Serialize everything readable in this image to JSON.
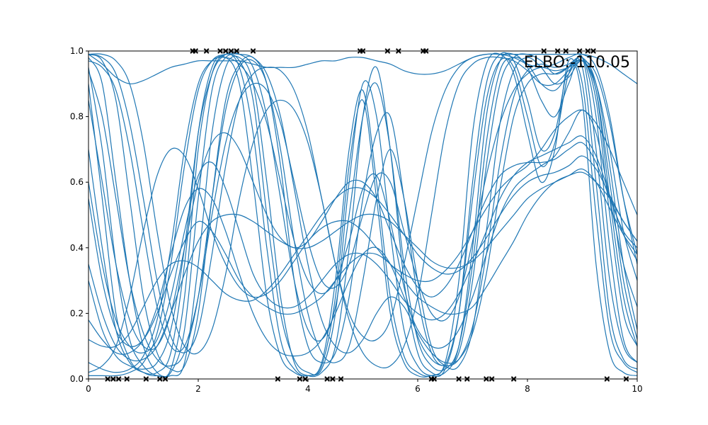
{
  "chart_data": {
    "type": "line",
    "title": "",
    "xlabel": "",
    "ylabel": "",
    "xlim": [
      0,
      10
    ],
    "ylim": [
      0,
      1
    ],
    "x_ticks": [
      "0",
      "2",
      "4",
      "6",
      "8",
      "10"
    ],
    "y_ticks": [
      "0.0",
      "0.2",
      "0.4",
      "0.6",
      "0.8",
      "1.0"
    ],
    "x_tick_values": [
      0,
      2,
      4,
      6,
      8,
      10
    ],
    "y_tick_values": [
      0.0,
      0.2,
      0.4,
      0.6,
      0.8,
      1.0
    ],
    "grid": false,
    "legend": "none",
    "line_color": "#1f77b4",
    "marker_color": "#000000",
    "annotation": "ELBO:-110.05",
    "x": [
      0,
      0.25,
      0.5,
      0.75,
      1.0,
      1.25,
      1.5,
      1.75,
      2.0,
      2.25,
      2.5,
      2.75,
      3.0,
      3.25,
      3.5,
      3.75,
      4.0,
      4.25,
      4.5,
      4.75,
      5.0,
      5.25,
      5.5,
      5.75,
      6.0,
      6.25,
      6.5,
      6.75,
      7.0,
      7.25,
      7.5,
      7.75,
      8.0,
      8.25,
      8.5,
      8.75,
      9.0,
      9.25,
      9.5,
      9.75,
      10.0
    ],
    "series": [
      {
        "values": [
          0.98,
          0.9,
          0.6,
          0.3,
          0.1,
          0.02,
          0.01,
          0.05,
          0.35,
          0.75,
          0.95,
          0.98,
          0.9,
          0.6,
          0.25,
          0.05,
          0.01,
          0.02,
          0.1,
          0.4,
          0.8,
          0.95,
          0.7,
          0.3,
          0.08,
          0.02,
          0.02,
          0.1,
          0.4,
          0.8,
          0.97,
          0.99,
          0.95,
          0.85,
          0.8,
          0.9,
          0.98,
          0.7,
          0.3,
          0.1,
          0.05
        ]
      },
      {
        "values": [
          0.95,
          0.7,
          0.35,
          0.12,
          0.04,
          0.01,
          0.02,
          0.15,
          0.55,
          0.88,
          0.98,
          0.97,
          0.85,
          0.5,
          0.2,
          0.06,
          0.02,
          0.03,
          0.2,
          0.6,
          0.9,
          0.8,
          0.45,
          0.15,
          0.04,
          0.01,
          0.03,
          0.2,
          0.6,
          0.9,
          0.99,
          0.97,
          0.85,
          0.7,
          0.75,
          0.95,
          0.9,
          0.5,
          0.15,
          0.05,
          0.02
        ]
      },
      {
        "values": [
          0.9,
          0.55,
          0.2,
          0.06,
          0.02,
          0.01,
          0.03,
          0.25,
          0.7,
          0.93,
          0.99,
          0.95,
          0.75,
          0.4,
          0.12,
          0.03,
          0.01,
          0.05,
          0.3,
          0.7,
          0.88,
          0.6,
          0.25,
          0.07,
          0.02,
          0.01,
          0.05,
          0.3,
          0.75,
          0.96,
          0.99,
          0.93,
          0.75,
          0.6,
          0.7,
          0.97,
          0.85,
          0.35,
          0.08,
          0.02,
          0.01
        ]
      },
      {
        "values": [
          0.99,
          0.97,
          0.85,
          0.55,
          0.25,
          0.08,
          0.03,
          0.04,
          0.2,
          0.55,
          0.85,
          0.96,
          0.98,
          0.9,
          0.65,
          0.3,
          0.1,
          0.05,
          0.08,
          0.25,
          0.55,
          0.75,
          0.8,
          0.55,
          0.25,
          0.08,
          0.04,
          0.08,
          0.3,
          0.65,
          0.9,
          0.98,
          0.99,
          0.97,
          0.93,
          0.95,
          0.98,
          0.85,
          0.5,
          0.2,
          0.1
        ]
      },
      {
        "values": [
          0.7,
          0.4,
          0.15,
          0.05,
          0.02,
          0.02,
          0.08,
          0.35,
          0.75,
          0.95,
          0.98,
          0.9,
          0.6,
          0.25,
          0.07,
          0.02,
          0.01,
          0.04,
          0.25,
          0.65,
          0.85,
          0.55,
          0.2,
          0.05,
          0.01,
          0.01,
          0.04,
          0.2,
          0.55,
          0.85,
          0.97,
          0.95,
          0.8,
          0.65,
          0.72,
          0.93,
          0.95,
          0.6,
          0.2,
          0.06,
          0.03
        ]
      },
      {
        "values": [
          0.97,
          0.95,
          0.88,
          0.7,
          0.45,
          0.22,
          0.1,
          0.1,
          0.25,
          0.5,
          0.72,
          0.85,
          0.9,
          0.88,
          0.78,
          0.6,
          0.42,
          0.3,
          0.28,
          0.35,
          0.5,
          0.62,
          0.6,
          0.45,
          0.3,
          0.2,
          0.18,
          0.25,
          0.42,
          0.62,
          0.78,
          0.88,
          0.93,
          0.95,
          0.94,
          0.95,
          0.97,
          0.9,
          0.7,
          0.45,
          0.3
        ]
      },
      {
        "values": [
          0.3,
          0.15,
          0.07,
          0.04,
          0.03,
          0.05,
          0.15,
          0.4,
          0.75,
          0.93,
          0.99,
          0.99,
          0.95,
          0.8,
          0.55,
          0.3,
          0.15,
          0.12,
          0.22,
          0.5,
          0.8,
          0.9,
          0.7,
          0.35,
          0.12,
          0.04,
          0.03,
          0.1,
          0.35,
          0.72,
          0.94,
          0.98,
          0.96,
          0.9,
          0.88,
          0.93,
          0.98,
          0.8,
          0.4,
          0.12,
          0.05
        ]
      },
      {
        "values": [
          0.85,
          0.6,
          0.35,
          0.18,
          0.1,
          0.1,
          0.2,
          0.4,
          0.6,
          0.72,
          0.75,
          0.7,
          0.6,
          0.5,
          0.43,
          0.4,
          0.42,
          0.48,
          0.55,
          0.6,
          0.6,
          0.55,
          0.45,
          0.35,
          0.28,
          0.25,
          0.28,
          0.35,
          0.45,
          0.55,
          0.62,
          0.65,
          0.66,
          0.66,
          0.67,
          0.7,
          0.72,
          0.66,
          0.55,
          0.45,
          0.4
        ]
      },
      {
        "values": [
          0.99,
          0.96,
          0.92,
          0.9,
          0.91,
          0.93,
          0.95,
          0.96,
          0.97,
          0.97,
          0.97,
          0.97,
          0.96,
          0.95,
          0.95,
          0.95,
          0.96,
          0.97,
          0.97,
          0.98,
          0.98,
          0.97,
          0.96,
          0.94,
          0.93,
          0.93,
          0.94,
          0.96,
          0.98,
          0.99,
          0.99,
          0.99,
          0.99,
          0.99,
          0.99,
          0.99,
          0.99,
          0.98,
          0.96,
          0.93,
          0.9
        ]
      },
      {
        "values": [
          0.55,
          0.3,
          0.15,
          0.1,
          0.12,
          0.2,
          0.32,
          0.42,
          0.48,
          0.45,
          0.38,
          0.3,
          0.25,
          0.22,
          0.2,
          0.2,
          0.22,
          0.25,
          0.3,
          0.35,
          0.38,
          0.38,
          0.35,
          0.3,
          0.25,
          0.22,
          0.2,
          0.2,
          0.22,
          0.28,
          0.35,
          0.42,
          0.5,
          0.56,
          0.6,
          0.62,
          0.63,
          0.6,
          0.55,
          0.48,
          0.42
        ]
      },
      {
        "values": [
          0.02,
          0.04,
          0.1,
          0.25,
          0.45,
          0.62,
          0.7,
          0.68,
          0.58,
          0.45,
          0.35,
          0.28,
          0.25,
          0.26,
          0.3,
          0.36,
          0.42,
          0.46,
          0.48,
          0.48,
          0.45,
          0.4,
          0.35,
          0.32,
          0.3,
          0.3,
          0.33,
          0.38,
          0.45,
          0.52,
          0.58,
          0.62,
          0.65,
          0.7,
          0.76,
          0.8,
          0.82,
          0.78,
          0.7,
          0.6,
          0.5
        ]
      },
      {
        "values": [
          0.99,
          0.98,
          0.93,
          0.78,
          0.55,
          0.3,
          0.13,
          0.08,
          0.15,
          0.38,
          0.65,
          0.85,
          0.93,
          0.95,
          0.94,
          0.88,
          0.75,
          0.55,
          0.35,
          0.2,
          0.13,
          0.12,
          0.18,
          0.35,
          0.55,
          0.75,
          0.88,
          0.95,
          0.98,
          0.99,
          0.99,
          0.98,
          0.96,
          0.95,
          0.96,
          0.98,
          0.99,
          0.95,
          0.8,
          0.55,
          0.35
        ]
      },
      {
        "values": [
          0.18,
          0.12,
          0.08,
          0.08,
          0.12,
          0.22,
          0.38,
          0.52,
          0.58,
          0.55,
          0.45,
          0.32,
          0.2,
          0.12,
          0.08,
          0.07,
          0.08,
          0.12,
          0.2,
          0.3,
          0.38,
          0.4,
          0.35,
          0.25,
          0.15,
          0.1,
          0.1,
          0.15,
          0.25,
          0.38,
          0.5,
          0.58,
          0.62,
          0.65,
          0.68,
          0.75,
          0.82,
          0.75,
          0.55,
          0.35,
          0.22
        ]
      },
      {
        "values": [
          0.94,
          0.8,
          0.55,
          0.3,
          0.14,
          0.06,
          0.04,
          0.08,
          0.25,
          0.55,
          0.82,
          0.95,
          0.97,
          0.9,
          0.7,
          0.42,
          0.2,
          0.08,
          0.05,
          0.1,
          0.3,
          0.55,
          0.7,
          0.55,
          0.3,
          0.1,
          0.04,
          0.04,
          0.15,
          0.45,
          0.78,
          0.94,
          0.98,
          0.95,
          0.9,
          0.92,
          0.97,
          0.88,
          0.55,
          0.25,
          0.1
        ]
      },
      {
        "values": [
          0.6,
          0.35,
          0.18,
          0.1,
          0.08,
          0.12,
          0.25,
          0.45,
          0.62,
          0.66,
          0.58,
          0.45,
          0.32,
          0.25,
          0.22,
          0.22,
          0.25,
          0.3,
          0.35,
          0.38,
          0.38,
          0.35,
          0.3,
          0.24,
          0.2,
          0.18,
          0.2,
          0.26,
          0.35,
          0.45,
          0.55,
          0.62,
          0.66,
          0.68,
          0.7,
          0.72,
          0.74,
          0.68,
          0.56,
          0.44,
          0.36
        ]
      },
      {
        "values": [
          0.05,
          0.03,
          0.02,
          0.03,
          0.07,
          0.18,
          0.4,
          0.7,
          0.9,
          0.97,
          0.98,
          0.96,
          0.9,
          0.78,
          0.6,
          0.42,
          0.3,
          0.26,
          0.3,
          0.42,
          0.58,
          0.62,
          0.48,
          0.28,
          0.13,
          0.06,
          0.04,
          0.06,
          0.16,
          0.38,
          0.66,
          0.86,
          0.94,
          0.96,
          0.95,
          0.96,
          0.98,
          0.9,
          0.65,
          0.35,
          0.15
        ]
      },
      {
        "values": [
          0.12,
          0.1,
          0.1,
          0.14,
          0.22,
          0.3,
          0.35,
          0.36,
          0.34,
          0.3,
          0.26,
          0.24,
          0.24,
          0.27,
          0.32,
          0.38,
          0.44,
          0.5,
          0.55,
          0.58,
          0.58,
          0.55,
          0.5,
          0.44,
          0.38,
          0.34,
          0.32,
          0.33,
          0.37,
          0.43,
          0.5,
          0.56,
          0.6,
          0.62,
          0.63,
          0.65,
          0.68,
          0.64,
          0.56,
          0.48,
          0.42
        ]
      },
      {
        "values": [
          0.99,
          0.99,
          0.97,
          0.9,
          0.72,
          0.45,
          0.22,
          0.1,
          0.08,
          0.15,
          0.32,
          0.55,
          0.72,
          0.82,
          0.85,
          0.82,
          0.72,
          0.55,
          0.35,
          0.18,
          0.08,
          0.04,
          0.04,
          0.1,
          0.25,
          0.5,
          0.75,
          0.9,
          0.96,
          0.98,
          0.98,
          0.97,
          0.94,
          0.9,
          0.9,
          0.94,
          0.97,
          0.93,
          0.78,
          0.55,
          0.38
        ]
      },
      {
        "values": [
          0.35,
          0.2,
          0.1,
          0.06,
          0.06,
          0.1,
          0.2,
          0.32,
          0.42,
          0.48,
          0.5,
          0.5,
          0.48,
          0.45,
          0.42,
          0.4,
          0.4,
          0.42,
          0.45,
          0.48,
          0.5,
          0.5,
          0.48,
          0.44,
          0.4,
          0.36,
          0.34,
          0.34,
          0.36,
          0.4,
          0.45,
          0.5,
          0.55,
          0.58,
          0.6,
          0.62,
          0.64,
          0.6,
          0.52,
          0.44,
          0.38
        ]
      },
      {
        "values": [
          0.01,
          0.01,
          0.01,
          0.02,
          0.05,
          0.14,
          0.35,
          0.65,
          0.88,
          0.97,
          0.99,
          0.99,
          0.98,
          0.93,
          0.8,
          0.58,
          0.35,
          0.18,
          0.1,
          0.08,
          0.12,
          0.2,
          0.25,
          0.22,
          0.14,
          0.08,
          0.05,
          0.06,
          0.14,
          0.32,
          0.58,
          0.8,
          0.9,
          0.93,
          0.93,
          0.95,
          0.97,
          0.88,
          0.6,
          0.3,
          0.12
        ]
      }
    ],
    "markers": {
      "x": [
        1.9,
        1.95,
        2.15,
        2.4,
        2.5,
        2.6,
        2.7,
        3.0,
        4.95,
        5.0,
        5.45,
        5.65,
        6.1,
        6.15,
        8.3,
        8.55,
        8.7,
        8.95,
        9.1,
        9.2,
        0.35,
        0.45,
        0.55,
        0.7,
        1.05,
        1.3,
        1.4,
        3.45,
        3.85,
        3.95,
        4.35,
        4.45,
        4.6,
        6.25,
        6.3,
        6.75,
        6.9,
        7.25,
        7.35,
        7.75,
        9.45,
        9.8
      ],
      "y": [
        1,
        1,
        1,
        1,
        1,
        1,
        1,
        1,
        1,
        1,
        1,
        1,
        1,
        1,
        1,
        1,
        1,
        1,
        1,
        1,
        0,
        0,
        0,
        0,
        0,
        0,
        0,
        0,
        0,
        0,
        0,
        0,
        0,
        0,
        0,
        0,
        0,
        0,
        0,
        0,
        0,
        0
      ]
    }
  }
}
